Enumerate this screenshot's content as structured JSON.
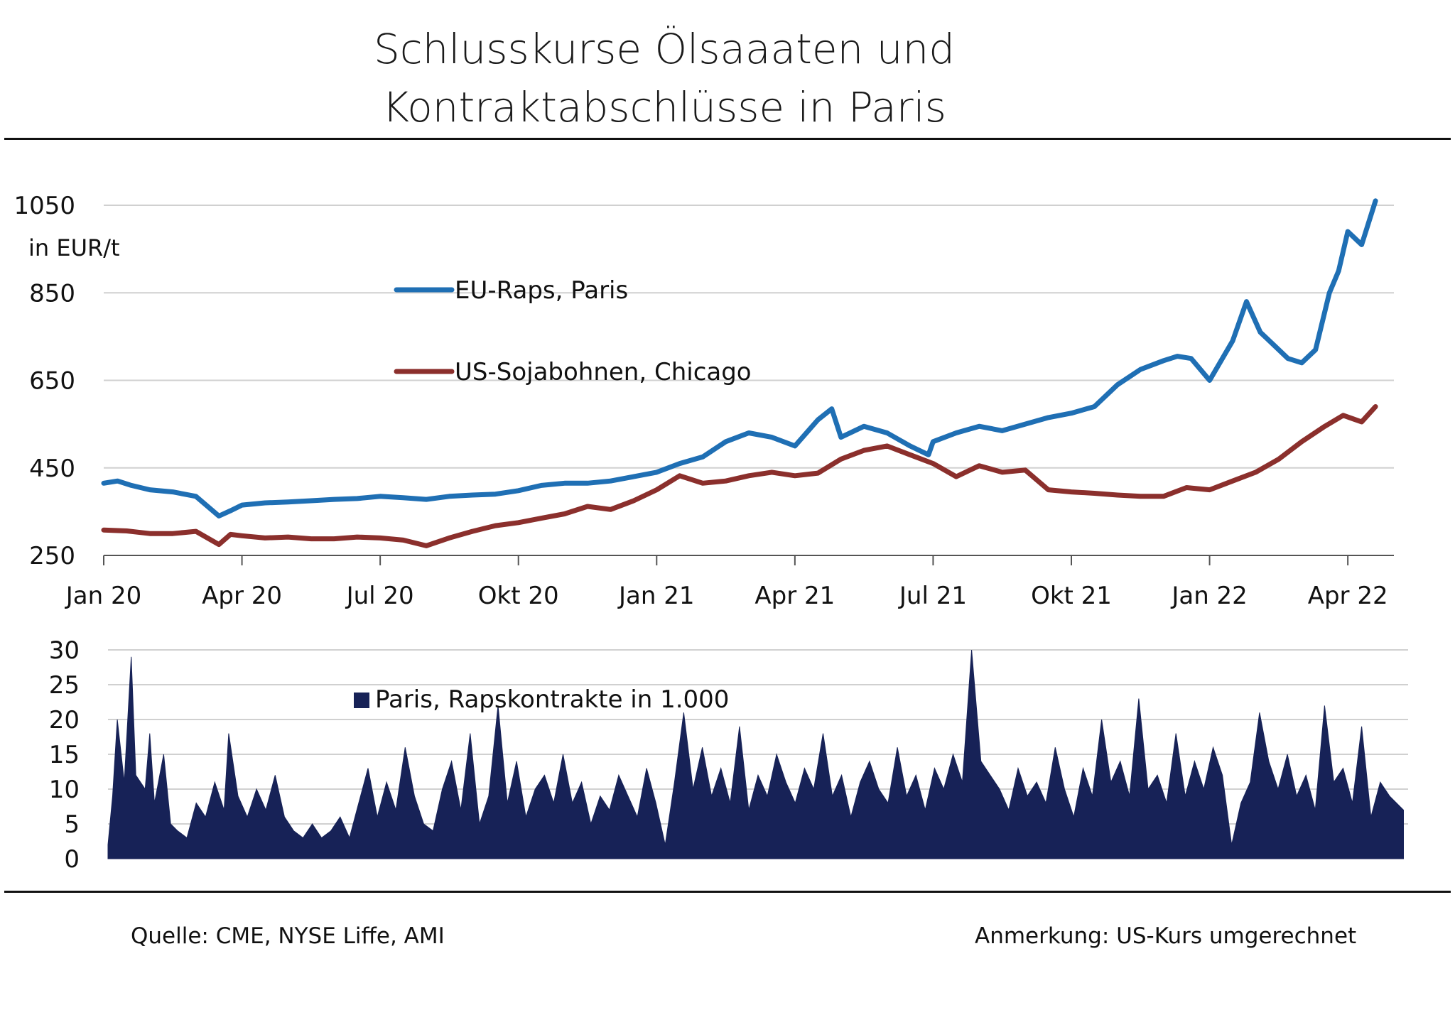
{
  "title_line1": "Schlusskurse Ölsaaaten und",
  "title_line2": "Kontraktabschlüsse in Paris",
  "source": "Quelle: CME, NYSE Liffe, AMI",
  "note": "Anmerkung: US-Kurs umgerechnet",
  "colors": {
    "raps": "#1f6fb4",
    "soja": "#8b2f2c",
    "volume": "#172257",
    "grid": "#d0d0d0",
    "axis": "#555555"
  },
  "chart_data": [
    {
      "type": "line",
      "title": "Schlusskurse Ölsaaaten",
      "ylabel": "in EUR/t",
      "xlabel": "",
      "ylim": [
        250,
        1050
      ],
      "yticks": [
        "250",
        "450",
        "650",
        "850",
        "1050"
      ],
      "x_tick_labels": [
        "Jan 20",
        "Apr 20",
        "Jul 20",
        "Okt 20",
        "Jan 21",
        "Apr 21",
        "Jul 21",
        "Okt 21",
        "Jan 22",
        "Apr 22"
      ],
      "x_unit": "months since Jan 2020",
      "series": [
        {
          "name": "EU-Raps, Paris",
          "x": [
            0,
            0.3,
            0.6,
            1.0,
            1.5,
            2.0,
            2.5,
            2.75,
            3.0,
            3.5,
            4.0,
            4.5,
            5.0,
            5.5,
            6.0,
            6.5,
            7.0,
            7.5,
            8.0,
            8.5,
            9.0,
            9.5,
            10.0,
            10.5,
            11.0,
            11.5,
            12.0,
            12.5,
            13.0,
            13.5,
            14.0,
            14.5,
            15.0,
            15.5,
            15.8,
            16.0,
            16.5,
            17.0,
            17.5,
            17.9,
            18.0,
            18.5,
            19.0,
            19.5,
            20.0,
            20.5,
            21.0,
            21.5,
            22.0,
            22.5,
            23.0,
            23.3,
            23.6,
            24.0,
            24.5,
            24.8,
            25.1,
            25.4,
            25.7,
            26.0,
            26.3,
            26.6,
            26.8,
            27.0,
            27.3,
            27.6
          ],
          "values": [
            415,
            420,
            410,
            400,
            395,
            385,
            340,
            352,
            365,
            370,
            372,
            375,
            378,
            380,
            385,
            382,
            378,
            385,
            388,
            390,
            398,
            410,
            415,
            415,
            420,
            430,
            440,
            460,
            475,
            510,
            530,
            520,
            500,
            560,
            585,
            520,
            545,
            530,
            500,
            480,
            510,
            530,
            545,
            535,
            550,
            565,
            575,
            590,
            640,
            675,
            695,
            705,
            700,
            650,
            740,
            830,
            760,
            730,
            700,
            690,
            720,
            850,
            900,
            990,
            960,
            1060
          ]
        },
        {
          "name": "US-Sojabohnen, Chicago",
          "x": [
            0,
            0.5,
            1.0,
            1.5,
            2.0,
            2.5,
            2.75,
            3.0,
            3.5,
            4.0,
            4.5,
            5.0,
            5.5,
            6.0,
            6.5,
            7.0,
            7.5,
            8.0,
            8.5,
            9.0,
            9.5,
            10.0,
            10.5,
            11.0,
            11.5,
            12.0,
            12.5,
            13.0,
            13.5,
            14.0,
            14.5,
            15.0,
            15.5,
            16.0,
            16.5,
            17.0,
            17.5,
            18.0,
            18.5,
            19.0,
            19.5,
            20.0,
            20.5,
            21.0,
            21.5,
            22.0,
            22.5,
            23.0,
            23.5,
            24.0,
            24.5,
            25.0,
            25.5,
            26.0,
            26.5,
            26.9,
            27.3,
            27.6
          ],
          "values": [
            308,
            306,
            300,
            300,
            305,
            275,
            298,
            295,
            290,
            292,
            288,
            288,
            292,
            290,
            285,
            272,
            290,
            305,
            318,
            325,
            335,
            345,
            362,
            355,
            375,
            400,
            432,
            415,
            420,
            432,
            440,
            432,
            438,
            470,
            490,
            500,
            480,
            460,
            430,
            455,
            440,
            445,
            400,
            395,
            392,
            388,
            385,
            385,
            405,
            400,
            420,
            440,
            470,
            510,
            545,
            570,
            555,
            590
          ]
        }
      ]
    },
    {
      "type": "area",
      "title": "Kontraktabschlüsse in Paris",
      "ylim": [
        0,
        30
      ],
      "yticks": [
        "0",
        "5",
        "10",
        "15",
        "20",
        "25",
        "30"
      ],
      "series": [
        {
          "name": "Paris, Rapskontrakte in 1.000",
          "x": [
            0,
            0.1,
            0.2,
            0.35,
            0.5,
            0.6,
            0.8,
            0.9,
            1.0,
            1.2,
            1.35,
            1.5,
            1.7,
            1.9,
            2.1,
            2.3,
            2.5,
            2.6,
            2.8,
            3.0,
            3.2,
            3.4,
            3.6,
            3.8,
            4.0,
            4.2,
            4.4,
            4.6,
            4.8,
            5.0,
            5.2,
            5.4,
            5.6,
            5.8,
            6.0,
            6.2,
            6.4,
            6.6,
            6.8,
            7.0,
            7.2,
            7.4,
            7.6,
            7.8,
            8.0,
            8.2,
            8.4,
            8.6,
            8.8,
            9.0,
            9.2,
            9.4,
            9.6,
            9.8,
            10.0,
            10.2,
            10.4,
            10.6,
            10.8,
            11.0,
            11.2,
            11.4,
            11.6,
            11.8,
            12.0,
            12.2,
            12.4,
            12.6,
            12.8,
            13.0,
            13.2,
            13.4,
            13.6,
            13.8,
            14.0,
            14.2,
            14.4,
            14.6,
            14.8,
            15.0,
            15.2,
            15.4,
            15.6,
            15.8,
            16.0,
            16.2,
            16.4,
            16.6,
            16.8,
            17.0,
            17.2,
            17.4,
            17.6,
            17.8,
            18.0,
            18.2,
            18.4,
            18.6,
            18.8,
            19.0,
            19.2,
            19.4,
            19.6,
            19.8,
            20.0,
            20.2,
            20.4,
            20.6,
            20.8,
            21.0,
            21.2,
            21.4,
            21.6,
            21.8,
            22.0,
            22.2,
            22.4,
            22.6,
            22.8,
            23.0,
            23.2,
            23.4,
            23.6,
            23.8,
            24.0,
            24.2,
            24.4,
            24.6,
            24.8,
            25.0,
            25.2,
            25.4,
            25.6,
            25.8,
            26.0,
            26.2,
            26.4,
            26.6,
            26.8,
            27.0,
            27.2,
            27.4,
            27.6,
            27.9
          ],
          "values": [
            2,
            9,
            20,
            11,
            29,
            12,
            10,
            18,
            8,
            15,
            5,
            4,
            3,
            8,
            6,
            11,
            7,
            18,
            9,
            6,
            10,
            7,
            12,
            6,
            4,
            3,
            5,
            3,
            4,
            6,
            3,
            8,
            13,
            6,
            11,
            7,
            16,
            9,
            5,
            4,
            10,
            14,
            7,
            18,
            5,
            9,
            22,
            8,
            14,
            6,
            10,
            12,
            8,
            15,
            8,
            11,
            5,
            9,
            7,
            12,
            9,
            6,
            13,
            8,
            2,
            11,
            21,
            10,
            16,
            9,
            13,
            8,
            19,
            7,
            12,
            9,
            15,
            11,
            8,
            13,
            10,
            18,
            9,
            12,
            6,
            11,
            14,
            10,
            8,
            16,
            9,
            12,
            7,
            13,
            10,
            15,
            11,
            30,
            14,
            12,
            10,
            7,
            13,
            9,
            11,
            8,
            16,
            10,
            6,
            13,
            9,
            20,
            11,
            14,
            9,
            23,
            10,
            12,
            8,
            18,
            9,
            14,
            10,
            16,
            12,
            2,
            8,
            11,
            21,
            14,
            10,
            15,
            9,
            12,
            7,
            22,
            11,
            13,
            8,
            19,
            6,
            11,
            9,
            7
          ]
        }
      ]
    }
  ]
}
